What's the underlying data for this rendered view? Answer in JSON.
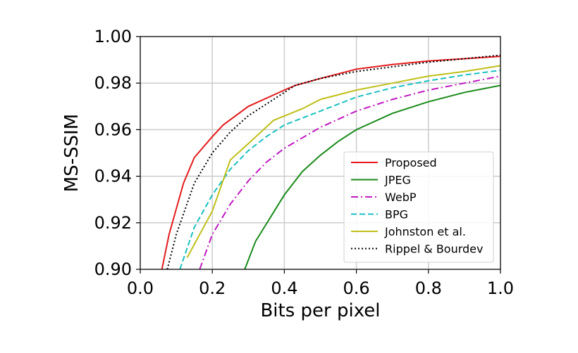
{
  "chart_data": {
    "type": "line",
    "x_label": "Bits per pixel",
    "y_label": "MS-SSIM",
    "xlim": [
      0,
      1
    ],
    "ylim": [
      0.9,
      1
    ],
    "xticks": [
      {
        "value": 0,
        "label": "0.0"
      },
      0.2,
      0.4,
      0.6,
      0.8,
      {
        "value": 1,
        "label": "1.0"
      }
    ],
    "yticks": [
      {
        "value": 0.9,
        "label": "0.90"
      },
      0.92,
      0.94,
      0.96,
      0.98,
      {
        "value": 1,
        "label": "1.00"
      }
    ],
    "grid": true,
    "legend": "lower right",
    "series": [
      {
        "name": "Proposed",
        "color": "#e41a1c",
        "linestyle": "solid",
        "x": [
          0.06,
          0.08,
          0.12,
          0.15,
          0.2,
          0.23,
          0.3,
          0.4,
          0.43,
          0.5,
          0.6,
          0.7,
          0.8,
          0.9,
          1.0
        ],
        "values": [
          0.9,
          0.915,
          0.937,
          0.948,
          0.957,
          0.962,
          0.97,
          0.977,
          0.979,
          0.982,
          0.986,
          0.988,
          0.9895,
          0.9905,
          0.9915
        ]
      },
      {
        "name": "JPEG",
        "color": "#1a8a1a",
        "linestyle": "solid",
        "x": [
          0.29,
          0.32,
          0.36,
          0.4,
          0.45,
          0.5,
          0.55,
          0.6,
          0.7,
          0.8,
          0.9,
          1.0
        ],
        "values": [
          0.9,
          0.912,
          0.922,
          0.932,
          0.942,
          0.949,
          0.955,
          0.96,
          0.967,
          0.972,
          0.976,
          0.979
        ]
      },
      {
        "name": "WebP",
        "color": "#c01ac0",
        "linestyle": "dashdot",
        "x": [
          0.165,
          0.2,
          0.25,
          0.3,
          0.35,
          0.4,
          0.5,
          0.6,
          0.7,
          0.8,
          0.9,
          1.0
        ],
        "values": [
          0.9,
          0.915,
          0.928,
          0.938,
          0.946,
          0.952,
          0.961,
          0.968,
          0.973,
          0.977,
          0.98,
          0.983
        ]
      },
      {
        "name": "BPG",
        "color": "#1ac0c0",
        "linestyle": "dashed",
        "x": [
          0.11,
          0.15,
          0.2,
          0.25,
          0.3,
          0.35,
          0.4,
          0.5,
          0.6,
          0.7,
          0.8,
          0.9,
          1.0
        ],
        "values": [
          0.9,
          0.918,
          0.932,
          0.943,
          0.951,
          0.957,
          0.962,
          0.968,
          0.974,
          0.978,
          0.981,
          0.9835,
          0.9855
        ]
      },
      {
        "name": "Johnston et al.",
        "color": "#bfbf1a",
        "linestyle": "solid",
        "x": [
          0.13,
          0.2,
          0.25,
          0.3,
          0.37,
          0.45,
          0.5,
          0.6,
          0.7,
          0.8,
          0.9,
          1.0
        ],
        "values": [
          0.905,
          0.925,
          0.947,
          0.954,
          0.964,
          0.969,
          0.973,
          0.977,
          0.98,
          0.983,
          0.985,
          0.9875
        ]
      },
      {
        "name": "Rippel & Bourdev",
        "color": "#000000",
        "linestyle": "dotted",
        "x": [
          0.075,
          0.1,
          0.15,
          0.2,
          0.25,
          0.3,
          0.4,
          0.43,
          0.5,
          0.6,
          0.7,
          0.8,
          0.9,
          1.0
        ],
        "values": [
          0.9,
          0.915,
          0.937,
          0.95,
          0.959,
          0.966,
          0.976,
          0.979,
          0.982,
          0.985,
          0.987,
          0.989,
          0.9905,
          0.992
        ]
      }
    ]
  }
}
